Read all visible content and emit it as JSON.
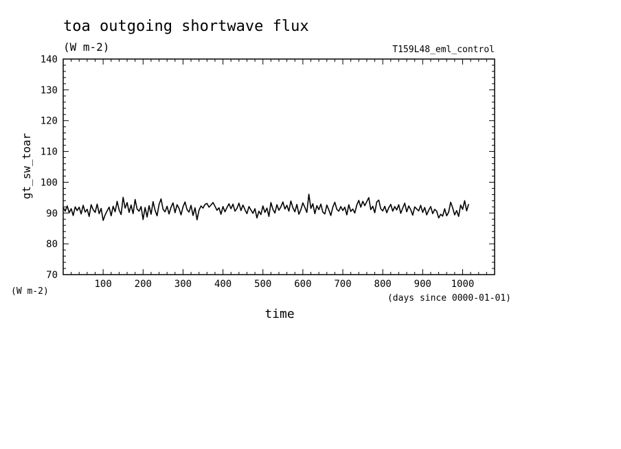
{
  "colors": {
    "background": "#ffffff",
    "ink": "#000000"
  },
  "chart_data": {
    "type": "line",
    "title": "toa outgoing shortwave flux",
    "subtitle": "(W m-2)",
    "experiment": "T159L48_eml_control",
    "xlabel": "time",
    "xunits": "(days since 0000-01-01)",
    "ylabel": "gt_sw_toar",
    "yunits": "(W m-2)",
    "xlim": [
      0,
      1080
    ],
    "ylim": [
      70,
      140
    ],
    "xticks": [
      100,
      200,
      300,
      400,
      500,
      600,
      700,
      800,
      900,
      1000
    ],
    "yticks": [
      70,
      80,
      90,
      100,
      110,
      120,
      130,
      140
    ],
    "grid": false,
    "series": [
      {
        "x_start": 0,
        "x_step": 5,
        "values": [
          91.8,
          90.6,
          92.3,
          90.1,
          91.4,
          89.2,
          92.0,
          90.8,
          91.9,
          89.7,
          92.5,
          90.3,
          91.2,
          88.9,
          92.7,
          91.1,
          90.2,
          92.9,
          89.8,
          91.5,
          87.6,
          89.4,
          90.7,
          91.9,
          89.1,
          92.2,
          90.4,
          93.8,
          91.0,
          89.5,
          95.1,
          91.6,
          93.4,
          90.2,
          92.6,
          89.8,
          94.4,
          91.3,
          90.6,
          92.1,
          87.9,
          91.8,
          88.7,
          92.4,
          89.6,
          93.7,
          90.9,
          89.1,
          92.8,
          94.6,
          91.2,
          90.4,
          92.2,
          89.7,
          91.9,
          93.3,
          90.1,
          92.7,
          91.5,
          89.4,
          92.0,
          93.6,
          91.1,
          90.3,
          92.5,
          89.2,
          91.7,
          87.8,
          90.9,
          92.3,
          91.6,
          92.8,
          93.1,
          91.9,
          92.6,
          93.4,
          92.2,
          90.9,
          91.7,
          89.6,
          92.1,
          90.4,
          91.8,
          93.0,
          91.4,
          92.9,
          90.6,
          91.5,
          93.2,
          90.8,
          92.6,
          91.1,
          89.8,
          92.1,
          91.0,
          89.9,
          91.4,
          88.4,
          90.6,
          89.5,
          92.3,
          90.2,
          91.6,
          88.9,
          93.4,
          91.2,
          90.0,
          92.7,
          90.9,
          92.0,
          93.6,
          91.3,
          92.5,
          90.6,
          93.9,
          91.7,
          90.4,
          92.8,
          89.6,
          91.1,
          93.3,
          91.8,
          90.2,
          96.1,
          91.5,
          93.0,
          89.8,
          92.4,
          91.1,
          92.9,
          90.3,
          89.7,
          92.6,
          91.0,
          89.2,
          91.9,
          93.5,
          91.2,
          90.6,
          92.1,
          90.8,
          91.9,
          89.4,
          92.7,
          90.5,
          91.3,
          90.0,
          92.6,
          94.1,
          91.9,
          93.8,
          92.4,
          93.7,
          95.0,
          91.1,
          92.2,
          90.1,
          93.6,
          94.2,
          91.4,
          90.7,
          92.2,
          90.1,
          91.7,
          92.8,
          90.6,
          92.1,
          91.0,
          92.7,
          89.9,
          91.6,
          93.2,
          90.4,
          92.3,
          91.1,
          89.3,
          92.0,
          91.3,
          90.7,
          92.5,
          90.2,
          91.8,
          89.4,
          90.9,
          92.1,
          89.8,
          91.2,
          90.6,
          88.4,
          89.6,
          89.0,
          91.4,
          89.1,
          90.3,
          93.5,
          91.7,
          89.4,
          90.8,
          88.9,
          92.6,
          91.2,
          94.0,
          90.7,
          92.9
        ]
      }
    ]
  }
}
